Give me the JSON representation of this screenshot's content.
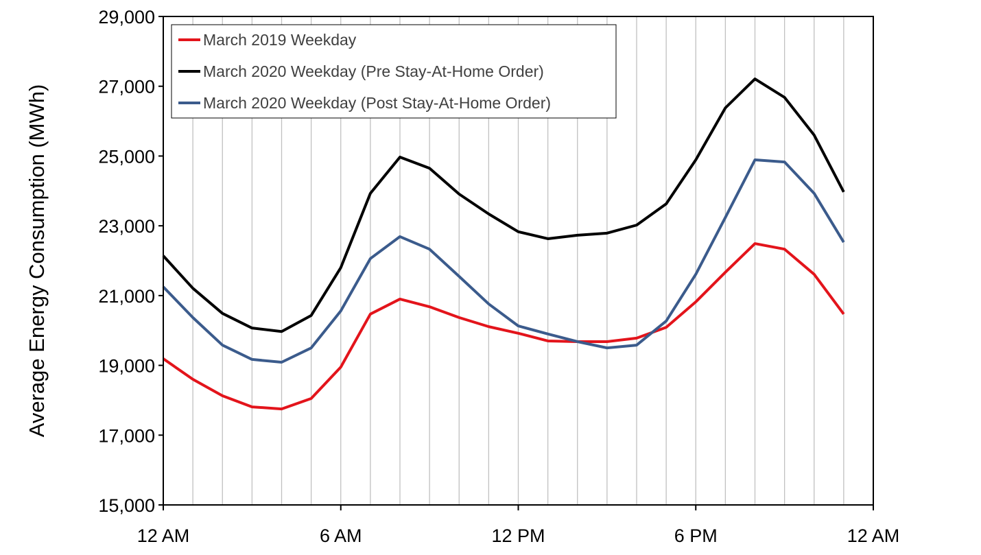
{
  "chart_data": {
    "type": "line",
    "title": "",
    "xlabel": "",
    "ylabel": "Average Energy Consumption (MWh)",
    "xlim": [
      0,
      24
    ],
    "ylim": [
      15000,
      29000
    ],
    "x_ticks": [
      0,
      6,
      12,
      18,
      24
    ],
    "x_tick_labels": [
      "12 AM",
      "6 AM",
      "12 PM",
      "6 PM",
      "12 AM"
    ],
    "y_ticks": [
      15000,
      17000,
      19000,
      21000,
      23000,
      25000,
      27000,
      29000
    ],
    "y_tick_labels": [
      "15,000",
      "17,000",
      "19,000",
      "21,000",
      "23,000",
      "25,000",
      "27,000",
      "29,000"
    ],
    "grid": "vertical hourly",
    "legend_position": "top-left",
    "x": [
      0,
      1,
      2,
      3,
      4,
      5,
      6,
      7,
      8,
      9,
      10,
      11,
      12,
      13,
      14,
      15,
      16,
      17,
      18,
      19,
      20,
      21,
      22,
      23
    ],
    "series": [
      {
        "name": "March 2019 Weekday",
        "color": "#e3141b",
        "values": [
          19190,
          18600,
          18130,
          17810,
          17750,
          18050,
          18950,
          20470,
          20900,
          20680,
          20370,
          20110,
          19920,
          19700,
          19680,
          19680,
          19780,
          20090,
          20820,
          21670,
          22490,
          22330,
          21610,
          20470
        ]
      },
      {
        "name": "March 2020 Weekday (Pre Stay-At-Home Order)",
        "color": "#000000",
        "values": [
          22140,
          21210,
          20490,
          20070,
          19970,
          20430,
          21800,
          23930,
          24970,
          24650,
          23910,
          23340,
          22830,
          22630,
          22730,
          22790,
          23020,
          23630,
          24890,
          26380,
          27210,
          26680,
          25600,
          23970
        ]
      },
      {
        "name": "March 2020 Weekday (Post Stay-At-Home Order)",
        "color": "#3b5b8c",
        "values": [
          21250,
          20370,
          19580,
          19170,
          19090,
          19500,
          20560,
          22060,
          22690,
          22330,
          21550,
          20760,
          20130,
          19900,
          19680,
          19500,
          19580,
          20270,
          21610,
          23240,
          24890,
          24830,
          23930,
          22530
        ]
      }
    ]
  }
}
